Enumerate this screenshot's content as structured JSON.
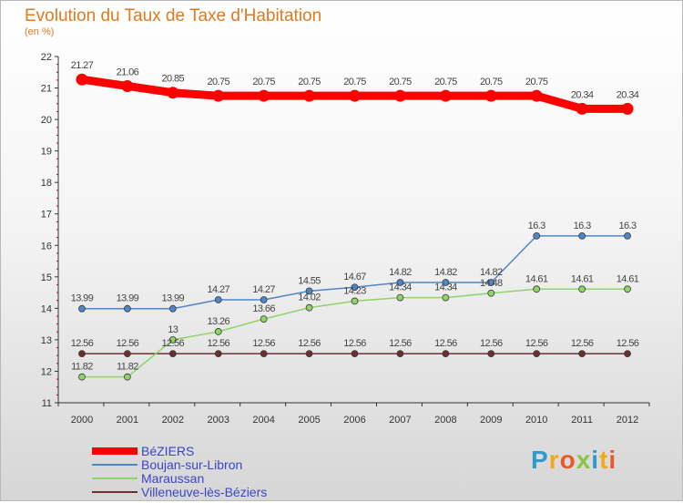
{
  "chart_data": {
    "type": "line",
    "title": "Evolution du Taux de Taxe d'Habitation",
    "subtitle": "(en %)",
    "categories": [
      "2000",
      "2001",
      "2002",
      "2003",
      "2004",
      "2005",
      "2006",
      "2007",
      "2008",
      "2009",
      "2010",
      "2011",
      "2012"
    ],
    "ylim": [
      11,
      22
    ],
    "yticks": [
      "11",
      "12",
      "13",
      "14",
      "15",
      "16",
      "17",
      "18",
      "19",
      "20",
      "21",
      "22"
    ],
    "grid": false,
    "series": [
      {
        "name": "BéZIERS",
        "color": "#ff0000",
        "values": [
          21.27,
          21.06,
          20.85,
          20.75,
          20.75,
          20.75,
          20.75,
          20.75,
          20.75,
          20.75,
          20.75,
          20.34,
          20.34
        ],
        "labels": [
          "21.27",
          "21.06",
          "20.85",
          "20.75",
          "20.75",
          "20.75",
          "20.75",
          "20.75",
          "20.75",
          "20.75",
          "20.75",
          "20.34",
          "20.34"
        ]
      },
      {
        "name": "Boujan-sur-Libron",
        "color": "#4f86c6",
        "values": [
          13.99,
          13.99,
          13.99,
          14.27,
          14.27,
          14.55,
          14.67,
          14.82,
          14.82,
          14.82,
          16.3,
          16.3,
          16.3
        ],
        "labels": [
          "13.99",
          "13.99",
          "13.99",
          "14.27",
          "14.27",
          "14.55",
          "14.67",
          "14.82",
          "14.82",
          "14.82",
          "16.3",
          "16.3",
          "16.3"
        ]
      },
      {
        "name": "Maraussan",
        "color": "#8ed468",
        "values": [
          11.82,
          11.82,
          13,
          13.26,
          13.66,
          14.02,
          14.23,
          14.34,
          14.34,
          14.48,
          14.61,
          14.61,
          14.61
        ],
        "labels": [
          "11.82",
          "11.82",
          "13",
          "13.26",
          "13.66",
          "14.02",
          "14.23",
          "14.34",
          "14.34",
          "14.48",
          "14.61",
          "14.61",
          "14.61"
        ]
      },
      {
        "name": "Villeneuve-lès-Béziers",
        "color": "#6b2f2f",
        "values": [
          12.56,
          12.56,
          12.56,
          12.56,
          12.56,
          12.56,
          12.56,
          12.56,
          12.56,
          12.56,
          12.56,
          12.56,
          12.56
        ],
        "labels": [
          "12.56",
          "12.56",
          "12.56",
          "12.56",
          "12.56",
          "12.56",
          "12.56",
          "12.56",
          "12.56",
          "12.56",
          "12.56",
          "12.56",
          "12.56"
        ]
      }
    ]
  },
  "brand": {
    "letters": [
      "P",
      "r",
      "o",
      "x",
      "i",
      "t",
      "i"
    ],
    "colors": [
      "#2e9ad0",
      "#f2a81d",
      "#e95a2a",
      "#8bc43f",
      "#2e9ad0",
      "#f2a81d",
      "#e95a2a"
    ]
  }
}
